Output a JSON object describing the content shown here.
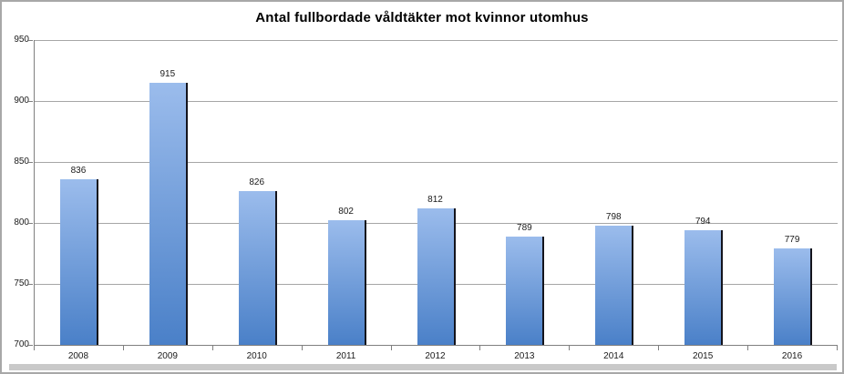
{
  "chart_data": {
    "type": "bar",
    "title": "Antal fullbordade våldtäkter mot kvinnor utomhus",
    "categories": [
      "2008",
      "2009",
      "2010",
      "2011",
      "2012",
      "2013",
      "2014",
      "2015",
      "2016"
    ],
    "values": [
      836,
      915,
      826,
      802,
      812,
      789,
      798,
      794,
      779
    ],
    "xlabel": "",
    "ylabel": "",
    "ylim": [
      700,
      950
    ],
    "yticks": [
      700,
      750,
      800,
      850,
      900,
      950
    ],
    "grid": true,
    "legend_position": "none",
    "data_labels": true,
    "colors": {
      "bar_gradient_top": "#9bbcec",
      "bar_gradient_bottom": "#4a80c8",
      "bar_shadow": "#14141c",
      "gridline": "#a6a6a6",
      "axis": "#7f7f7f",
      "label_text": "#1a1a1a",
      "title_text": "#000000",
      "frame_border": "#a8a8a8",
      "bottom_strip": "#c9c9c9"
    }
  }
}
